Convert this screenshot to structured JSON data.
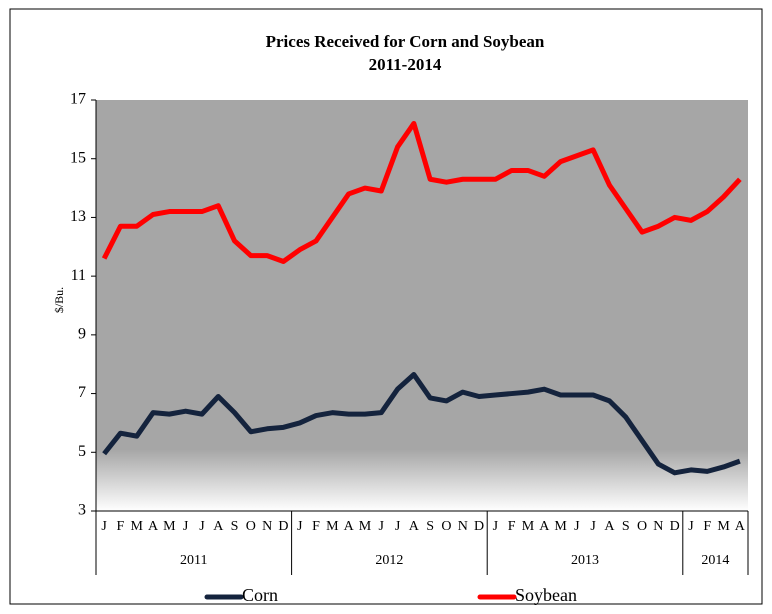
{
  "chart_data": {
    "type": "line",
    "title": "Prices Received for Corn and Soybean",
    "subtitle": "2011-2014",
    "y_label": "$/Bu.",
    "category_groups": [
      {
        "label": "2011",
        "categories": [
          "J",
          "F",
          "M",
          "A",
          "M",
          "J",
          "J",
          "A",
          "S",
          "O",
          "N",
          "D"
        ]
      },
      {
        "label": "2012",
        "categories": [
          "J",
          "F",
          "M",
          "A",
          "M",
          "J",
          "J",
          "A",
          "S",
          "O",
          "N",
          "D"
        ]
      },
      {
        "label": "2013",
        "categories": [
          "J",
          "F",
          "M",
          "A",
          "M",
          "J",
          "J",
          "A",
          "S",
          "O",
          "N",
          "D"
        ]
      },
      {
        "label": "2014",
        "categories": [
          "J",
          "F",
          "M",
          "A"
        ]
      }
    ],
    "series": [
      {
        "name": "Corn",
        "color": "#14233d",
        "values": [
          4.95,
          5.65,
          5.55,
          6.35,
          6.3,
          6.4,
          6.3,
          6.9,
          6.35,
          5.7,
          5.8,
          5.85,
          6.0,
          6.25,
          6.35,
          6.3,
          6.3,
          6.35,
          7.15,
          7.65,
          6.85,
          6.75,
          7.05,
          6.9,
          6.95,
          7.0,
          7.05,
          7.15,
          6.95,
          6.95,
          6.95,
          6.75,
          6.2,
          5.4,
          4.6,
          4.3,
          4.4,
          4.35,
          4.5,
          4.7
        ]
      },
      {
        "name": "Soybean",
        "color": "#ff0000",
        "values": [
          11.6,
          12.7,
          12.7,
          13.1,
          13.2,
          13.2,
          13.2,
          13.4,
          12.2,
          11.7,
          11.7,
          11.5,
          11.9,
          12.2,
          13.0,
          13.8,
          14.0,
          13.9,
          15.4,
          16.2,
          14.3,
          14.2,
          14.3,
          14.3,
          14.3,
          14.6,
          14.6,
          14.4,
          14.9,
          15.1,
          15.3,
          14.1,
          13.3,
          12.5,
          12.7,
          13.0,
          12.9,
          13.2,
          13.7,
          14.3
        ]
      }
    ],
    "ylim": [
      3,
      17
    ],
    "yticks": [
      3,
      5,
      7,
      9,
      11,
      13,
      15,
      17
    ],
    "grid": false,
    "legend": "bottom"
  }
}
